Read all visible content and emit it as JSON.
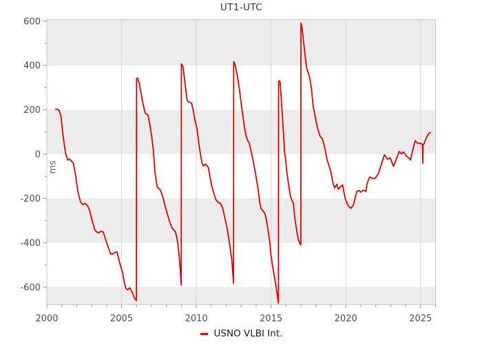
{
  "title": "UT1-UTC",
  "y_axis_label": "ms",
  "legend": {
    "label": "USNO VLBI Int.",
    "color": "#dd0000"
  },
  "colors": {
    "line": "#dd0000",
    "band": "#ececec",
    "grid": "#d5d5d5",
    "border": "#c4c4c4",
    "tick": "#919191",
    "tick_label": "#4d4d4d",
    "title": "#333333",
    "axis_label": "#666666",
    "legend_text": "#1a1a1a",
    "background": "#ffffff"
  },
  "chart_data": {
    "type": "line",
    "title": "UT1-UTC",
    "xlabel": "",
    "ylabel": "ms",
    "legend_position": "bottom-center",
    "grid": "vertical-major-plus-horizontal-bands",
    "xlim": [
      2000,
      2026
    ],
    "ylim": [
      -679,
      607
    ],
    "x_ticks_major": [
      2000,
      2005,
      2010,
      2015,
      2020,
      2025
    ],
    "x_tick_labels": [
      "2000",
      "2005",
      "2010",
      "2015",
      "2020",
      "2025"
    ],
    "x_ticks_minor": [
      2001,
      2002,
      2003,
      2004,
      2006,
      2007,
      2008,
      2009,
      2011,
      2012,
      2013,
      2014,
      2016,
      2017,
      2018,
      2019,
      2021,
      2022,
      2023,
      2024,
      2026
    ],
    "x_gridlines": [
      2005,
      2010,
      2015,
      2020,
      2025
    ],
    "y_ticks_major": [
      -600,
      -400,
      -200,
      0,
      200,
      400,
      600
    ],
    "y_tick_labels": [
      "-600",
      "-400",
      "-200",
      "0",
      "200",
      "400",
      "600"
    ],
    "y_ticks_minor": [
      -500,
      -300,
      -100,
      100,
      300,
      500
    ],
    "bands_gray": [
      [
        400,
        607
      ],
      [
        0,
        200
      ],
      [
        -400,
        -200
      ],
      [
        -679,
        -600
      ]
    ],
    "leap_second_jumps": [
      {
        "epoch": 2006.0,
        "before_ms": -661,
        "after_ms": 339
      },
      {
        "epoch": 2009.0,
        "before_ms": -591,
        "after_ms": 407
      },
      {
        "epoch": 2012.5,
        "before_ms": -583,
        "after_ms": 417
      },
      {
        "epoch": 2015.5,
        "before_ms": -672,
        "after_ms": 328
      },
      {
        "epoch": 2017.0,
        "before_ms": -410,
        "after_ms": 591
      }
    ],
    "series": [
      {
        "name": "USNO VLBI Int.",
        "color": "#dd0000",
        "points": [
          [
            2000.58,
            203
          ],
          [
            2000.72,
            201
          ],
          [
            2000.83,
            196
          ],
          [
            2000.95,
            170
          ],
          [
            2001.1,
            75
          ],
          [
            2001.25,
            5
          ],
          [
            2001.4,
            -27
          ],
          [
            2001.52,
            -22
          ],
          [
            2001.63,
            -30
          ],
          [
            2001.78,
            -42
          ],
          [
            2001.92,
            -95
          ],
          [
            2002.08,
            -170
          ],
          [
            2002.25,
            -215
          ],
          [
            2002.4,
            -228
          ],
          [
            2002.55,
            -222
          ],
          [
            2002.72,
            -232
          ],
          [
            2002.88,
            -258
          ],
          [
            2003.05,
            -305
          ],
          [
            2003.2,
            -340
          ],
          [
            2003.32,
            -351
          ],
          [
            2003.48,
            -355
          ],
          [
            2003.62,
            -348
          ],
          [
            2003.78,
            -352
          ],
          [
            2003.93,
            -385
          ],
          [
            2004.1,
            -420
          ],
          [
            2004.28,
            -452
          ],
          [
            2004.42,
            -450
          ],
          [
            2004.56,
            -443
          ],
          [
            2004.7,
            -442
          ],
          [
            2004.85,
            -485
          ],
          [
            2005.08,
            -538
          ],
          [
            2005.18,
            -580
          ],
          [
            2005.28,
            -605
          ],
          [
            2005.4,
            -612
          ],
          [
            2005.54,
            -603
          ],
          [
            2005.7,
            -622
          ],
          [
            2005.85,
            -648
          ],
          [
            2005.99,
            -661
          ],
          [
            2006.0,
            339
          ],
          [
            2006.07,
            344
          ],
          [
            2006.18,
            320
          ],
          [
            2006.32,
            268
          ],
          [
            2006.45,
            222
          ],
          [
            2006.58,
            185
          ],
          [
            2006.77,
            176
          ],
          [
            2006.9,
            130
          ],
          [
            2007.01,
            80
          ],
          [
            2007.12,
            22
          ],
          [
            2007.23,
            -81
          ],
          [
            2007.38,
            -148
          ],
          [
            2007.5,
            -155
          ],
          [
            2007.61,
            -164
          ],
          [
            2007.77,
            -195
          ],
          [
            2007.92,
            -236
          ],
          [
            2008.07,
            -272
          ],
          [
            2008.23,
            -309
          ],
          [
            2008.38,
            -334
          ],
          [
            2008.53,
            -345
          ],
          [
            2008.61,
            -350
          ],
          [
            2008.76,
            -402
          ],
          [
            2008.84,
            -453
          ],
          [
            2008.92,
            -516
          ],
          [
            2008.99,
            -591
          ],
          [
            2009.0,
            407
          ],
          [
            2009.1,
            398
          ],
          [
            2009.22,
            333
          ],
          [
            2009.38,
            245
          ],
          [
            2009.45,
            237
          ],
          [
            2009.68,
            230
          ],
          [
            2009.8,
            195
          ],
          [
            2009.91,
            152
          ],
          [
            2010.04,
            116
          ],
          [
            2010.22,
            23
          ],
          [
            2010.38,
            -40
          ],
          [
            2010.47,
            -53
          ],
          [
            2010.62,
            -45
          ],
          [
            2010.8,
            -60
          ],
          [
            2011.0,
            -135
          ],
          [
            2011.15,
            -172
          ],
          [
            2011.3,
            -205
          ],
          [
            2011.45,
            -218
          ],
          [
            2011.6,
            -222
          ],
          [
            2011.75,
            -240
          ],
          [
            2011.91,
            -288
          ],
          [
            2012.05,
            -330
          ],
          [
            2012.22,
            -402
          ],
          [
            2012.37,
            -474
          ],
          [
            2012.49,
            -583
          ],
          [
            2012.5,
            417
          ],
          [
            2012.57,
            410
          ],
          [
            2012.75,
            354
          ],
          [
            2012.9,
            282
          ],
          [
            2013.06,
            199
          ],
          [
            2013.21,
            126
          ],
          [
            2013.32,
            85
          ],
          [
            2013.44,
            60
          ],
          [
            2013.52,
            54
          ],
          [
            2013.67,
            12
          ],
          [
            2013.83,
            -39
          ],
          [
            2013.98,
            -96
          ],
          [
            2014.13,
            -158
          ],
          [
            2014.25,
            -222
          ],
          [
            2014.33,
            -246
          ],
          [
            2014.45,
            -255
          ],
          [
            2014.6,
            -270
          ],
          [
            2014.75,
            -320
          ],
          [
            2014.9,
            -390
          ],
          [
            2015.0,
            -460
          ],
          [
            2015.15,
            -525
          ],
          [
            2015.3,
            -585
          ],
          [
            2015.42,
            -640
          ],
          [
            2015.49,
            -672
          ],
          [
            2015.5,
            328
          ],
          [
            2015.56,
            331
          ],
          [
            2015.61,
            323
          ],
          [
            2015.67,
            261
          ],
          [
            2015.75,
            178
          ],
          [
            2015.83,
            95
          ],
          [
            2015.9,
            12
          ],
          [
            2015.98,
            -29
          ],
          [
            2016.05,
            -81
          ],
          [
            2016.21,
            -153
          ],
          [
            2016.29,
            -189
          ],
          [
            2016.4,
            -210
          ],
          [
            2016.49,
            -220
          ],
          [
            2016.59,
            -288
          ],
          [
            2016.7,
            -340
          ],
          [
            2016.82,
            -386
          ],
          [
            2016.92,
            -402
          ],
          [
            2016.99,
            -410
          ],
          [
            2017.0,
            591
          ],
          [
            2017.06,
            578
          ],
          [
            2017.14,
            528
          ],
          [
            2017.25,
            462
          ],
          [
            2017.36,
            395
          ],
          [
            2017.42,
            377
          ],
          [
            2017.5,
            366
          ],
          [
            2017.6,
            338
          ],
          [
            2017.7,
            295
          ],
          [
            2017.82,
            214
          ],
          [
            2017.97,
            162
          ],
          [
            2018.1,
            118
          ],
          [
            2018.28,
            80
          ],
          [
            2018.43,
            69
          ],
          [
            2018.59,
            28
          ],
          [
            2018.74,
            -24
          ],
          [
            2018.89,
            -55
          ],
          [
            2019.02,
            -85
          ],
          [
            2019.12,
            -125
          ],
          [
            2019.24,
            -153
          ],
          [
            2019.4,
            -136
          ],
          [
            2019.5,
            -158
          ],
          [
            2019.64,
            -148
          ],
          [
            2019.78,
            -139
          ],
          [
            2019.96,
            -200
          ],
          [
            2020.1,
            -226
          ],
          [
            2020.22,
            -238
          ],
          [
            2020.35,
            -244
          ],
          [
            2020.5,
            -230
          ],
          [
            2020.6,
            -205
          ],
          [
            2020.73,
            -169
          ],
          [
            2020.88,
            -164
          ],
          [
            2020.99,
            -172
          ],
          [
            2021.19,
            -162
          ],
          [
            2021.34,
            -169
          ],
          [
            2021.42,
            -133
          ],
          [
            2021.6,
            -103
          ],
          [
            2021.76,
            -110
          ],
          [
            2021.96,
            -110
          ],
          [
            2022.19,
            -86
          ],
          [
            2022.4,
            -40
          ],
          [
            2022.58,
            -3
          ],
          [
            2022.81,
            -24
          ],
          [
            2022.96,
            -16
          ],
          [
            2023.19,
            -55
          ],
          [
            2023.4,
            -18
          ],
          [
            2023.57,
            12
          ],
          [
            2023.72,
            1
          ],
          [
            2023.85,
            10
          ],
          [
            2024.05,
            -8
          ],
          [
            2024.26,
            -21
          ],
          [
            2024.33,
            -27
          ],
          [
            2024.45,
            12
          ],
          [
            2024.64,
            61
          ],
          [
            2024.8,
            49
          ],
          [
            2025.02,
            49
          ],
          [
            2025.1,
            43
          ],
          [
            2025.13,
            44
          ],
          [
            2025.145,
            -41
          ],
          [
            2025.16,
            42
          ],
          [
            2025.21,
            44
          ],
          [
            2025.39,
            75
          ],
          [
            2025.57,
            95
          ],
          [
            2025.66,
            97
          ]
        ]
      }
    ]
  }
}
